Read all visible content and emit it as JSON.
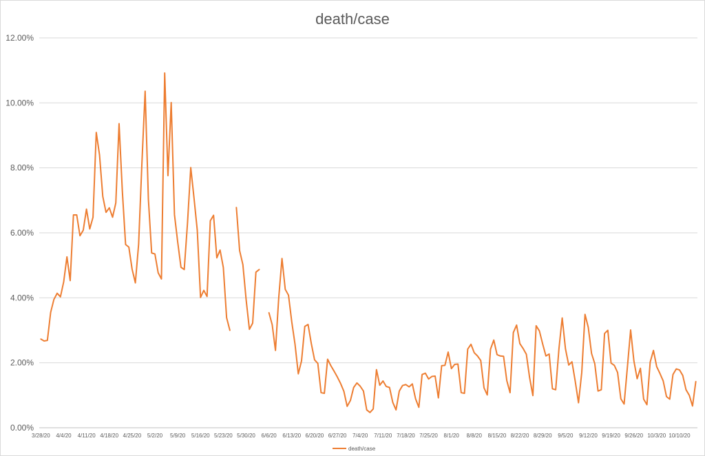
{
  "chart_data": {
    "type": "line",
    "title": "death/case",
    "xlabel": "",
    "ylabel": "",
    "ylim": [
      0,
      0.12
    ],
    "y_ticks": [
      "0.00%",
      "2.00%",
      "4.00%",
      "6.00%",
      "8.00%",
      "10.00%",
      "12.00%"
    ],
    "grid": true,
    "legend_position": "bottom",
    "series_color": "#ED7D31",
    "x_tick_labels": [
      "3/28/20",
      "4/4/20",
      "4/11/20",
      "4/18/20",
      "4/25/20",
      "5/2/20",
      "5/9/20",
      "5/16/20",
      "5/23/20",
      "5/30/20",
      "6/6/20",
      "6/13/20",
      "6/20/20",
      "6/27/20",
      "7/4/20",
      "7/11/20",
      "7/18/20",
      "7/25/20",
      "8/1/20",
      "8/8/20",
      "8/15/20",
      "8/22/20",
      "8/29/20",
      "9/5/20",
      "9/12/20",
      "9/19/20",
      "9/26/20",
      "10/3/20",
      "10/10/20"
    ],
    "x_start": "3/28/20",
    "x_end": "10/14/20",
    "series": [
      {
        "name": "death/case",
        "values": [
          0.0273,
          0.0267,
          0.0269,
          0.0355,
          0.0395,
          0.0414,
          0.0403,
          0.0449,
          0.0526,
          0.0453,
          0.0655,
          0.0655,
          0.0591,
          0.0608,
          0.0673,
          0.0612,
          0.0648,
          0.0909,
          0.084,
          0.0712,
          0.0663,
          0.0677,
          0.0648,
          0.0692,
          0.0936,
          0.0729,
          0.0564,
          0.0556,
          0.0488,
          0.0446,
          0.0565,
          0.0812,
          0.1036,
          0.0703,
          0.0538,
          0.0535,
          0.0477,
          0.0458,
          0.1092,
          0.0776,
          0.1001,
          0.0656,
          0.0571,
          0.0494,
          0.0487,
          0.063,
          0.0801,
          0.0707,
          0.0608,
          0.0401,
          0.0423,
          0.0404,
          0.0637,
          0.0654,
          0.0523,
          0.0547,
          0.0493,
          0.0339,
          0.03,
          null,
          0.0678,
          0.0545,
          0.0502,
          0.0394,
          0.0303,
          0.0322,
          0.0479,
          0.0487,
          null,
          null,
          0.0354,
          0.0317,
          0.0238,
          0.04,
          0.0521,
          0.0426,
          0.0408,
          0.0326,
          0.0257,
          0.0166,
          0.0206,
          0.0312,
          0.0318,
          0.0259,
          0.0209,
          0.0198,
          0.0108,
          0.0106,
          0.0211,
          0.0191,
          0.0174,
          0.0156,
          0.0136,
          0.0112,
          0.0066,
          0.0084,
          0.0124,
          0.0138,
          0.0128,
          0.0113,
          0.0055,
          0.0047,
          0.0058,
          0.0179,
          0.0131,
          0.0144,
          0.0127,
          0.0124,
          0.0078,
          0.0055,
          0.0113,
          0.013,
          0.0133,
          0.0126,
          0.0135,
          0.0089,
          0.0063,
          0.0164,
          0.0168,
          0.015,
          0.0158,
          0.0159,
          0.0092,
          0.0191,
          0.0192,
          0.0233,
          0.0182,
          0.0195,
          0.0196,
          0.0108,
          0.0106,
          0.0242,
          0.0257,
          0.0231,
          0.0221,
          0.0207,
          0.0123,
          0.0101,
          0.0242,
          0.027,
          0.0225,
          0.0221,
          0.022,
          0.0145,
          0.0108,
          0.0293,
          0.0316,
          0.0259,
          0.0244,
          0.0226,
          0.0154,
          0.0099,
          0.0314,
          0.0298,
          0.0258,
          0.0221,
          0.0227,
          0.012,
          0.0117,
          0.0243,
          0.0338,
          0.0243,
          0.0193,
          0.0203,
          0.0143,
          0.0077,
          0.017,
          0.0349,
          0.0309,
          0.0229,
          0.0197,
          0.0113,
          0.0117,
          0.029,
          0.03,
          0.0199,
          0.0192,
          0.017,
          0.0089,
          0.0073,
          0.0186,
          0.0301,
          0.0206,
          0.0151,
          0.0183,
          0.0088,
          0.0071,
          0.0202,
          0.0238,
          0.0188,
          0.0167,
          0.0144,
          0.0096,
          0.0088,
          0.0164,
          0.0181,
          0.0178,
          0.0161,
          0.0117,
          0.01,
          0.0067,
          0.0142
        ]
      }
    ]
  }
}
